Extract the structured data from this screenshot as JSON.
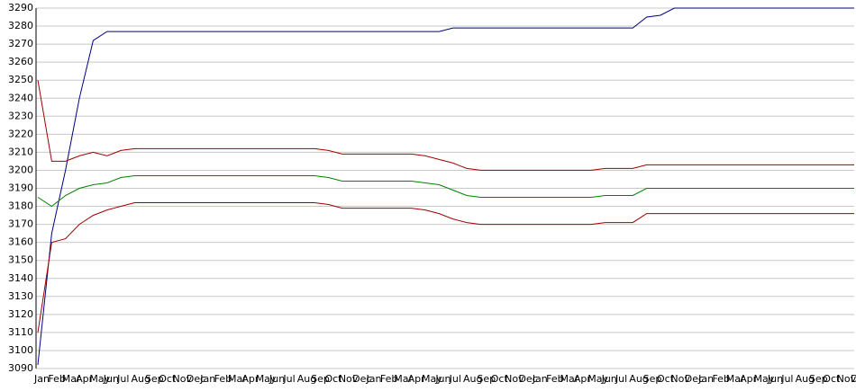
{
  "chart_data": {
    "type": "line",
    "categories": [
      "Jan",
      "Feb",
      "Mar",
      "Apr",
      "May",
      "Jun",
      "Jul",
      "Aug",
      "Sep",
      "Oct",
      "Nov",
      "Dec",
      "Jan",
      "Feb",
      "Mar",
      "Apr",
      "May",
      "Jun",
      "Jul",
      "Aug",
      "Sep",
      "Oct",
      "Nov",
      "Dec",
      "Jan",
      "Feb",
      "Mar",
      "Apr",
      "May",
      "Jun",
      "Jul",
      "Aug",
      "Sep",
      "Oct",
      "Nov",
      "Dec",
      "Jan",
      "Feb",
      "Mar",
      "Apr",
      "May",
      "Jun",
      "Jul",
      "Aug",
      "Sep",
      "Oct",
      "Nov",
      "Dec",
      "Jan",
      "Feb",
      "Mar",
      "Apr",
      "May",
      "Jun",
      "Jul",
      "Aug",
      "Sep",
      "Oct",
      "Nov",
      "Dec"
    ],
    "series": [
      {
        "color": "#000080",
        "values": [
          3092,
          3165,
          3200,
          3240,
          3272,
          3277,
          3277,
          3277,
          3277,
          3277,
          3277,
          3277,
          3277,
          3277,
          3277,
          3277,
          3277,
          3277,
          3277,
          3277,
          3277,
          3277,
          3277,
          3277,
          3277,
          3277,
          3277,
          3277,
          3277,
          3277,
          3279,
          3279,
          3279,
          3279,
          3279,
          3279,
          3279,
          3279,
          3279,
          3279,
          3279,
          3279,
          3279,
          3279,
          3285,
          3286,
          3290,
          3290,
          3290,
          3290,
          3290,
          3290,
          3290,
          3290,
          3290,
          3290,
          3290,
          3290,
          3290,
          3290
        ]
      },
      {
        "color": "#a00000",
        "values": [
          3250,
          3205,
          3205,
          3208,
          3210,
          3208,
          3211,
          3212,
          3212,
          3212,
          3212,
          3212,
          3212,
          3212,
          3212,
          3212,
          3212,
          3212,
          3212,
          3212,
          3212,
          3211,
          3209,
          3209,
          3209,
          3209,
          3209,
          3209,
          3208,
          3206,
          3204,
          3201,
          3200,
          3200,
          3200,
          3200,
          3200,
          3200,
          3200,
          3200,
          3200,
          3201,
          3201,
          3201,
          3203,
          3203,
          3203,
          3203,
          3203,
          3203,
          3203,
          3203,
          3203,
          3203,
          3203,
          3203,
          3203,
          3203,
          3203,
          3203
        ]
      },
      {
        "color": "#008000",
        "values": [
          3185,
          3180,
          3186,
          3190,
          3192,
          3193,
          3196,
          3197,
          3197,
          3197,
          3197,
          3197,
          3197,
          3197,
          3197,
          3197,
          3197,
          3197,
          3197,
          3197,
          3197,
          3196,
          3194,
          3194,
          3194,
          3194,
          3194,
          3194,
          3193,
          3192,
          3189,
          3186,
          3185,
          3185,
          3185,
          3185,
          3185,
          3185,
          3185,
          3185,
          3185,
          3186,
          3186,
          3186,
          3190,
          3190,
          3190,
          3190,
          3190,
          3190,
          3190,
          3190,
          3190,
          3190,
          3190,
          3190,
          3190,
          3190,
          3190,
          3190
        ]
      },
      {
        "color": "#a00000",
        "values": [
          3110,
          3160,
          3162,
          3170,
          3175,
          3178,
          3180,
          3182,
          3182,
          3182,
          3182,
          3182,
          3182,
          3182,
          3182,
          3182,
          3182,
          3182,
          3182,
          3182,
          3182,
          3181,
          3179,
          3179,
          3179,
          3179,
          3179,
          3179,
          3178,
          3176,
          3173,
          3171,
          3170,
          3170,
          3170,
          3170,
          3170,
          3170,
          3170,
          3170,
          3170,
          3171,
          3171,
          3171,
          3176,
          3176,
          3176,
          3176,
          3176,
          3176,
          3176,
          3176,
          3176,
          3176,
          3176,
          3176,
          3176,
          3176,
          3176,
          3176
        ]
      }
    ],
    "ylim": [
      3090,
      3290
    ],
    "yticks": [
      3090,
      3100,
      3110,
      3120,
      3130,
      3140,
      3150,
      3160,
      3170,
      3180,
      3190,
      3200,
      3210,
      3220,
      3230,
      3240,
      3250,
      3260,
      3270,
      3280,
      3290
    ],
    "grid": true
  }
}
